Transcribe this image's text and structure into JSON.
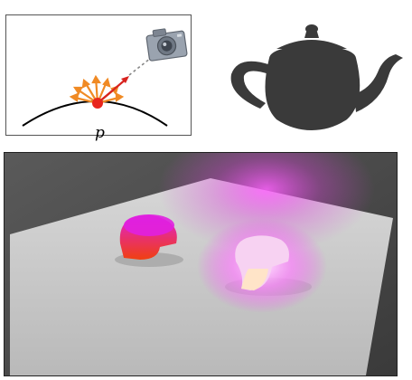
{
  "diagram": {
    "point_label": "p",
    "colors": {
      "surface": "#000000",
      "point": "#e8241c",
      "scatter_rays": "#f08a24",
      "view_ray": "#d8231f",
      "camera": "#8f98a6"
    },
    "icons": [
      "camera-icon"
    ]
  },
  "teapot": {
    "color": "#3a3a3a"
  },
  "render": {
    "colors": {
      "background": "#4a4a4a",
      "floor": "#c9c9c9",
      "glow": "#e040e0",
      "object_left_top": "#e020e0",
      "object_left_bottom": "#f04010",
      "object_right": "#f4c8f0"
    }
  }
}
